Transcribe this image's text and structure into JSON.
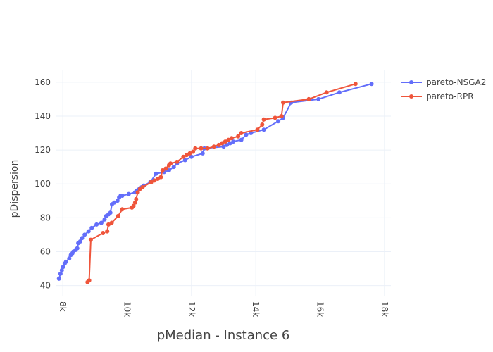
{
  "chart_data": {
    "type": "line",
    "xlabel": "pMedian - Instance 6",
    "ylabel": "pDispersion",
    "xlim": [
      7800,
      18200
    ],
    "ylim": [
      34,
      167
    ],
    "x_ticks": [
      8000,
      10000,
      12000,
      14000,
      16000,
      18000
    ],
    "x_tick_labels": [
      "8k",
      "10k",
      "12k",
      "14k",
      "16k",
      "18k"
    ],
    "y_ticks": [
      40,
      60,
      80,
      100,
      120,
      140,
      160
    ],
    "y_tick_labels": [
      "40",
      "60",
      "80",
      "100",
      "120",
      "140",
      "160"
    ],
    "grid": true,
    "legend_position": "top-right",
    "series": [
      {
        "name": "pareto-NSGA2",
        "color": "#636efa",
        "points": [
          [
            7880,
            44
          ],
          [
            7930,
            47
          ],
          [
            7970,
            49
          ],
          [
            8010,
            51
          ],
          [
            8060,
            53
          ],
          [
            8100,
            54
          ],
          [
            8200,
            56
          ],
          [
            8250,
            58
          ],
          [
            8300,
            59
          ],
          [
            8330,
            60
          ],
          [
            8400,
            61
          ],
          [
            8450,
            62
          ],
          [
            8480,
            65
          ],
          [
            8540,
            66
          ],
          [
            8600,
            68
          ],
          [
            8680,
            70
          ],
          [
            8800,
            72
          ],
          [
            8900,
            74
          ],
          [
            9050,
            76
          ],
          [
            9200,
            77
          ],
          [
            9300,
            79
          ],
          [
            9350,
            81
          ],
          [
            9420,
            82
          ],
          [
            9480,
            83
          ],
          [
            9530,
            88
          ],
          [
            9600,
            89
          ],
          [
            9700,
            90
          ],
          [
            9750,
            92
          ],
          [
            9800,
            93
          ],
          [
            9850,
            93
          ],
          [
            10050,
            94
          ],
          [
            10250,
            95
          ],
          [
            10300,
            96
          ],
          [
            10380,
            97
          ],
          [
            10450,
            98
          ],
          [
            10520,
            99
          ],
          [
            10720,
            101
          ],
          [
            10900,
            106
          ],
          [
            11150,
            107
          ],
          [
            11300,
            108
          ],
          [
            11450,
            110
          ],
          [
            11550,
            112
          ],
          [
            11800,
            114
          ],
          [
            12000,
            116
          ],
          [
            12350,
            118
          ],
          [
            12400,
            121
          ],
          [
            13000,
            122
          ],
          [
            13100,
            123
          ],
          [
            13200,
            124
          ],
          [
            13300,
            125
          ],
          [
            13550,
            126
          ],
          [
            13700,
            129
          ],
          [
            13850,
            130
          ],
          [
            14250,
            132
          ],
          [
            14700,
            137
          ],
          [
            14850,
            139
          ],
          [
            15100,
            148
          ],
          [
            15950,
            150
          ],
          [
            16600,
            154
          ],
          [
            17600,
            159
          ]
        ]
      },
      {
        "name": "pareto-RPR",
        "color": "#ef553b",
        "points": [
          [
            8770,
            42
          ],
          [
            8820,
            43
          ],
          [
            8870,
            67
          ],
          [
            9250,
            71
          ],
          [
            9380,
            72
          ],
          [
            9420,
            76
          ],
          [
            9520,
            77
          ],
          [
            9720,
            81
          ],
          [
            9850,
            85
          ],
          [
            10150,
            86
          ],
          [
            10200,
            87
          ],
          [
            10250,
            89
          ],
          [
            10280,
            91
          ],
          [
            10330,
            95
          ],
          [
            10400,
            97
          ],
          [
            10480,
            98
          ],
          [
            10750,
            101
          ],
          [
            10850,
            102
          ],
          [
            10950,
            103
          ],
          [
            11050,
            104
          ],
          [
            11100,
            108
          ],
          [
            11200,
            109
          ],
          [
            11300,
            111
          ],
          [
            11350,
            112
          ],
          [
            11550,
            113
          ],
          [
            11750,
            116
          ],
          [
            11850,
            117
          ],
          [
            11950,
            118
          ],
          [
            12050,
            119
          ],
          [
            12120,
            121
          ],
          [
            12300,
            121
          ],
          [
            12500,
            121
          ],
          [
            12700,
            122
          ],
          [
            12850,
            123
          ],
          [
            12950,
            124
          ],
          [
            13050,
            125
          ],
          [
            13150,
            126
          ],
          [
            13250,
            127
          ],
          [
            13450,
            128
          ],
          [
            13550,
            130
          ],
          [
            14050,
            132
          ],
          [
            14200,
            135
          ],
          [
            14250,
            138
          ],
          [
            14600,
            139
          ],
          [
            14800,
            140
          ],
          [
            14850,
            148
          ],
          [
            15650,
            150
          ],
          [
            16200,
            154
          ],
          [
            17100,
            159
          ]
        ]
      }
    ]
  }
}
